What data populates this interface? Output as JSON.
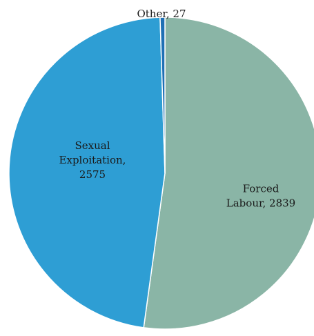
{
  "chart_data": {
    "type": "pie",
    "title": "",
    "slices": [
      {
        "label": "Forced Labour",
        "value": 2839,
        "color": "#8ab5a6",
        "display": "Forced Labour, 2839",
        "lines": [
          "Forced",
          "Labour, 2839"
        ]
      },
      {
        "label": "Sexual Exploitation",
        "value": 2575,
        "color": "#2e9ed4",
        "display": "Sexual Exploitation, 2575",
        "lines": [
          "Sexual",
          "Exploitation,",
          "2575"
        ]
      },
      {
        "label": "Other",
        "value": 27,
        "color": "#1f6fb4",
        "display": "Other, 27",
        "lines": [
          "Other, 27"
        ]
      }
    ],
    "start_angle_deg": 0,
    "direction": "clockwise",
    "legend": "none",
    "data_labels": "category-and-value"
  }
}
